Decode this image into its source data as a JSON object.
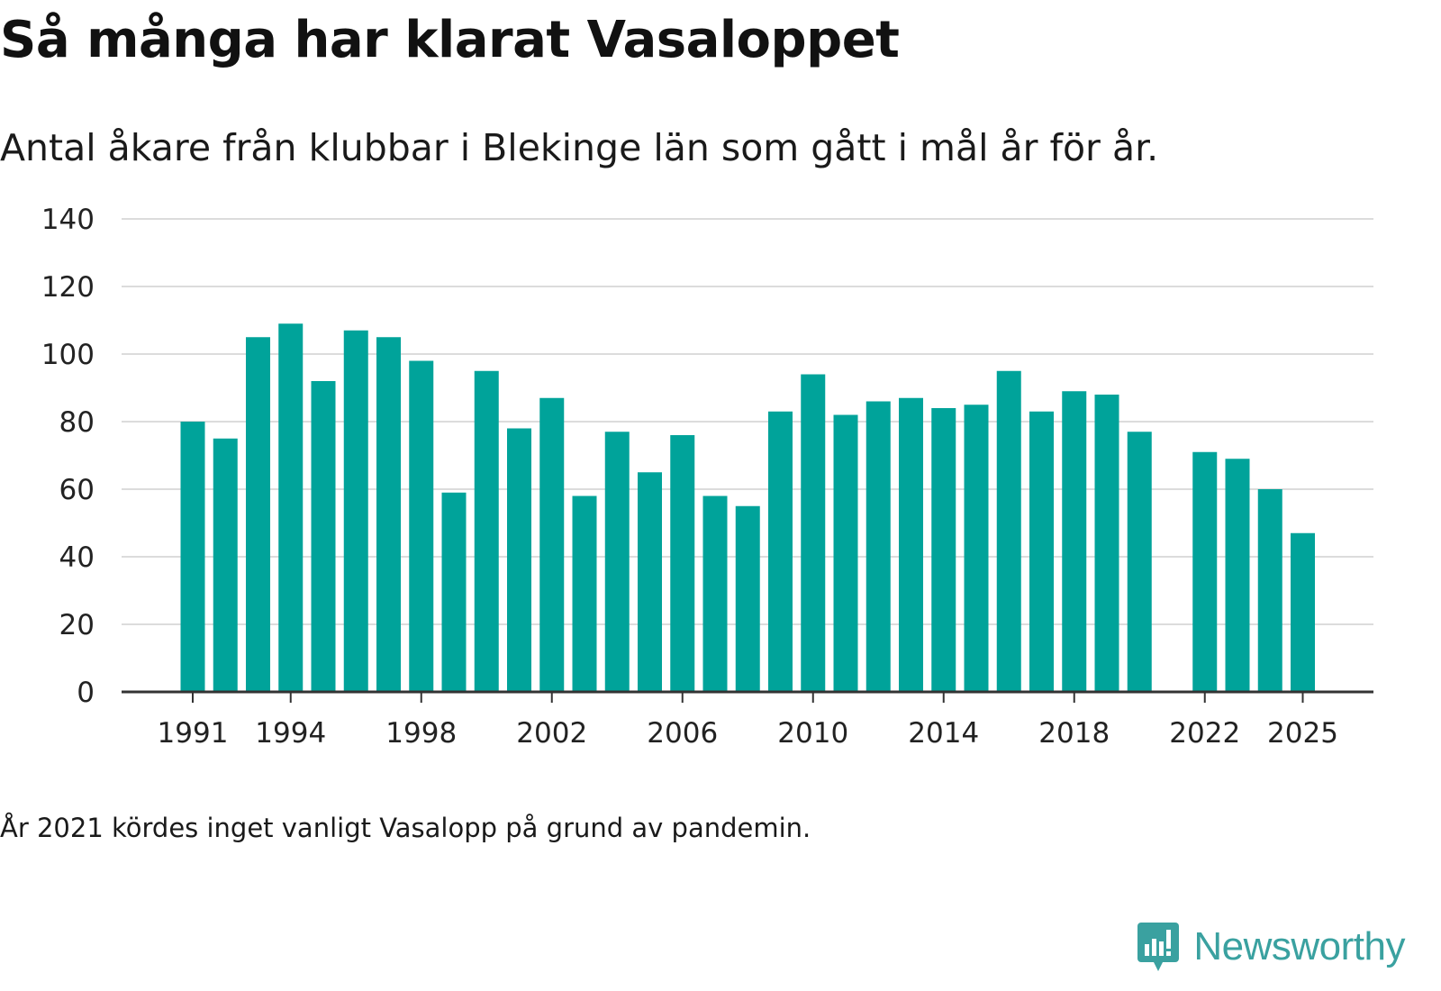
{
  "header": {
    "title": "Så många har klarat Vasaloppet",
    "subtitle": "Antal åkare från klubbar i Blekinge län som gått i mål år för år."
  },
  "footer": {
    "note": "År 2021 kördes inget vanligt Vasalopp på grund av pandemin.",
    "brand": "Newsworthy"
  },
  "colors": {
    "bar": "#00a39a",
    "grid": "#dcdcdc",
    "axis": "#333333",
    "brand": "#3aa1a0"
  },
  "chart_data": {
    "type": "bar",
    "title": "Så många har klarat Vasaloppet",
    "subtitle": "Antal åkare från klubbar i Blekinge län som gått i mål år för år.",
    "xlabel": "",
    "ylabel": "",
    "ylim": [
      0,
      140
    ],
    "yticks": [
      0,
      20,
      40,
      60,
      80,
      100,
      120,
      140
    ],
    "xticks": [
      1991,
      1994,
      1998,
      2002,
      2006,
      2010,
      2014,
      2018,
      2022,
      2025
    ],
    "grid": true,
    "categories": [
      1991,
      1992,
      1993,
      1994,
      1995,
      1996,
      1997,
      1998,
      1999,
      2000,
      2001,
      2002,
      2003,
      2004,
      2005,
      2006,
      2007,
      2008,
      2009,
      2010,
      2011,
      2012,
      2013,
      2014,
      2015,
      2016,
      2017,
      2018,
      2019,
      2020,
      2021,
      2022,
      2023,
      2024,
      2025
    ],
    "values": [
      80,
      75,
      105,
      109,
      92,
      107,
      105,
      98,
      59,
      95,
      78,
      87,
      58,
      77,
      65,
      76,
      58,
      55,
      83,
      94,
      82,
      86,
      87,
      84,
      85,
      95,
      83,
      89,
      88,
      77,
      null,
      71,
      69,
      60,
      47
    ]
  }
}
